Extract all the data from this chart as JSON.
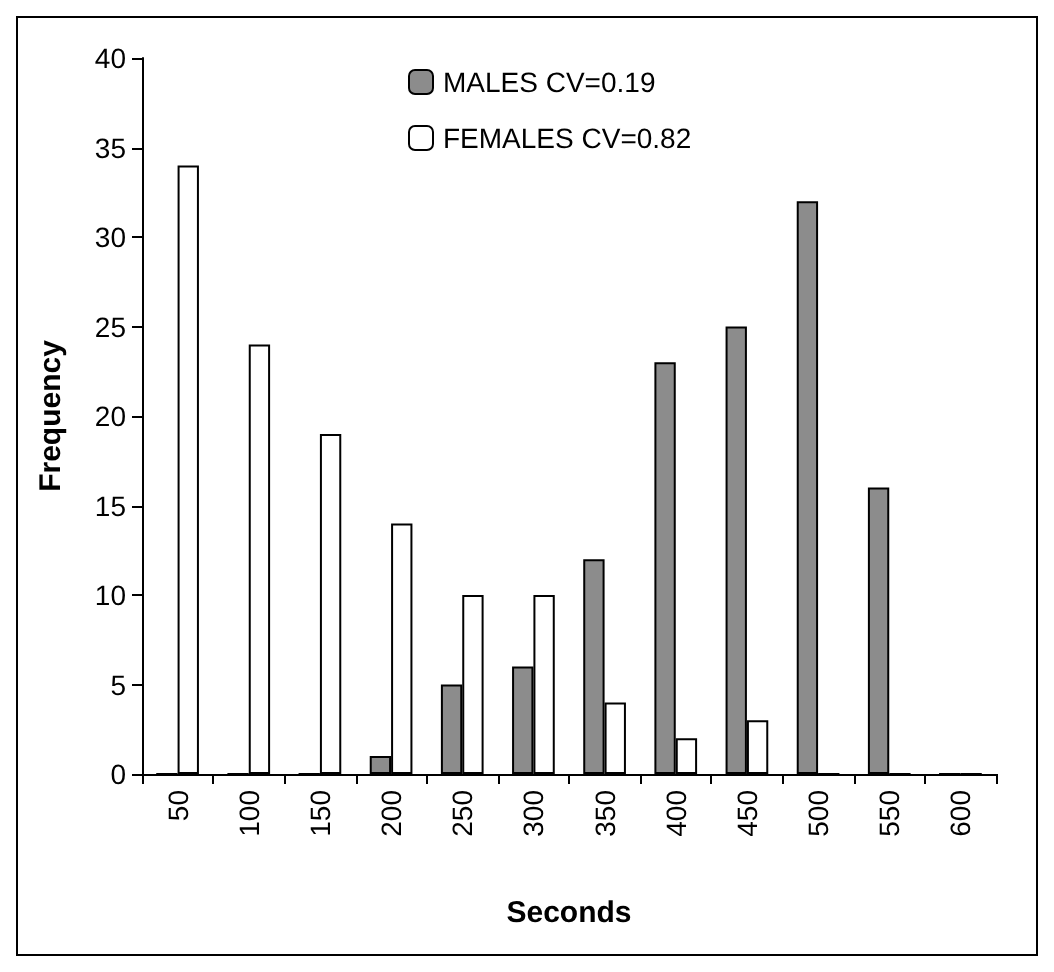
{
  "chart_data": {
    "type": "bar",
    "xlabel": "Seconds",
    "ylabel": "Frequency",
    "categories": [
      "50",
      "100",
      "150",
      "200",
      "250",
      "300",
      "350",
      "400",
      "450",
      "500",
      "550",
      "600"
    ],
    "series": [
      {
        "name": "MALES CV=0.19",
        "color": "#8c8c8c",
        "values": [
          0,
          0,
          0,
          1,
          5,
          6,
          12,
          23,
          25,
          32,
          16,
          0
        ]
      },
      {
        "name": "FEMALES CV=0.82",
        "color": "#ffffff",
        "values": [
          34,
          24,
          19,
          14,
          10,
          10,
          4,
          2,
          3,
          0,
          0,
          0
        ]
      }
    ],
    "ylim": [
      0,
      40
    ],
    "yticks": [
      0,
      5,
      10,
      15,
      20,
      25,
      30,
      35,
      40
    ],
    "grid": false,
    "legend": "top"
  }
}
